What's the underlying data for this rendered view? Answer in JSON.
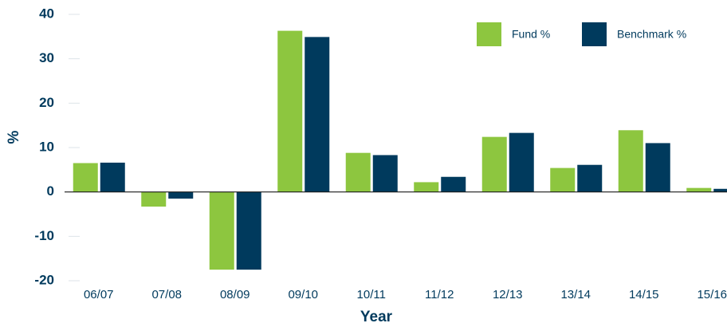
{
  "chart_data": {
    "type": "bar",
    "categories": [
      "06/07",
      "07/08",
      "08/09",
      "09/10",
      "10/11",
      "11/12",
      "12/13",
      "13/14",
      "14/15",
      "15/16"
    ],
    "series": [
      {
        "name": "Fund %",
        "color": "#8dc63f",
        "values": [
          6.5,
          -3.3,
          -17.5,
          36.3,
          8.8,
          2.2,
          12.4,
          5.4,
          13.9,
          0.9
        ]
      },
      {
        "name": "Benchmark %",
        "color": "#003a5d",
        "values": [
          6.6,
          -1.5,
          -17.5,
          34.9,
          8.3,
          3.4,
          13.3,
          6.1,
          11.0,
          0.7
        ]
      }
    ],
    "x_label": "Year",
    "y_label": "%",
    "ylim": [
      -20,
      40
    ],
    "yticks": [
      -20,
      -10,
      0,
      10,
      20,
      30,
      40
    ],
    "legend": "upper right"
  }
}
